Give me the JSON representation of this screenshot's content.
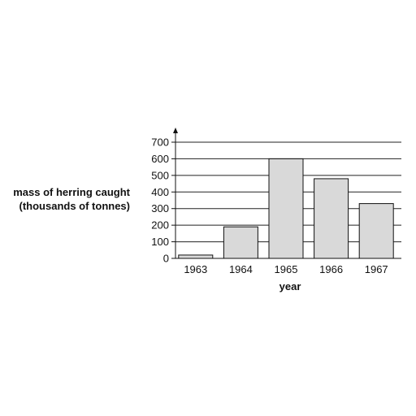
{
  "chart_data": {
    "type": "bar",
    "categories": [
      "1963",
      "1964",
      "1965",
      "1966",
      "1967"
    ],
    "values": [
      20,
      190,
      600,
      480,
      330
    ],
    "ylabel_lines": [
      "mass of herring caught",
      "(thousands of tonnes)"
    ],
    "xlabel": "year",
    "ylim": [
      0,
      700
    ],
    "yticks": [
      "0",
      "100",
      "200",
      "300",
      "400",
      "500",
      "600",
      "700"
    ],
    "grid": true,
    "bar_color": "#d9d9d9",
    "edge_color": "#111111"
  }
}
